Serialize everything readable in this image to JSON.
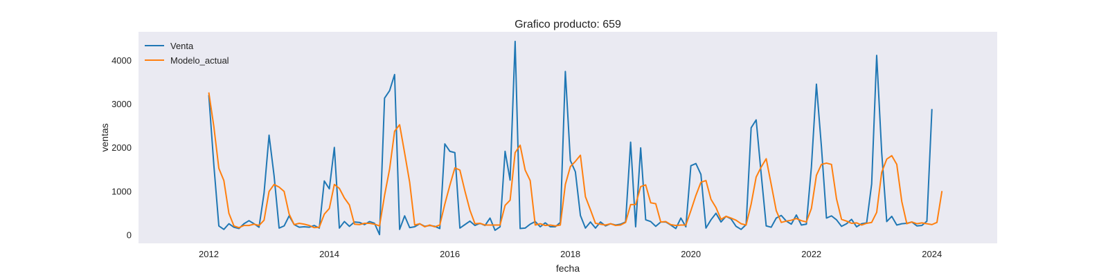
{
  "chart_data": {
    "type": "line",
    "title": "Grafico producto: 659",
    "xlabel": "fecha",
    "ylabel": "ventas",
    "x_start": "2012-01",
    "x_ticks": [
      "2012",
      "2014",
      "2016",
      "2018",
      "2020",
      "2022",
      "2024"
    ],
    "y_ticks": [
      0,
      1000,
      2000,
      3000,
      4000
    ],
    "xlim": [
      "2010-11",
      "2025-02"
    ],
    "ylim": [
      -200,
      4650
    ],
    "grid": false,
    "legend_position": "top-left",
    "background_color": "#eaeaf2",
    "series": [
      {
        "name": "Venta",
        "color": "#1f77b4",
        "values": [
          3200,
          1600,
          200,
          120,
          250,
          170,
          140,
          250,
          320,
          250,
          170,
          950,
          2280,
          1350,
          150,
          200,
          430,
          230,
          170,
          180,
          170,
          210,
          150,
          1230,
          1050,
          2000,
          150,
          300,
          190,
          290,
          280,
          230,
          300,
          260,
          0,
          3130,
          3300,
          3670,
          120,
          430,
          160,
          180,
          250,
          190,
          210,
          190,
          140,
          2080,
          1910,
          1880,
          150,
          230,
          310,
          210,
          260,
          210,
          380,
          100,
          180,
          1910,
          1250,
          4430,
          140,
          150,
          240,
          300,
          180,
          270,
          180,
          180,
          280,
          3740,
          1700,
          1440,
          440,
          150,
          290,
          150,
          290,
          200,
          250,
          220,
          240,
          290,
          2120,
          180,
          1990,
          340,
          300,
          190,
          290,
          290,
          220,
          140,
          380,
          180,
          1580,
          1630,
          1380,
          150,
          340,
          490,
          290,
          420,
          360,
          190,
          120,
          230,
          2450,
          2630,
          1390,
          200,
          170,
          380,
          440,
          310,
          240,
          450,
          220,
          240,
          1550,
          3450,
          2010,
          380,
          430,
          340,
          190,
          250,
          350,
          180,
          250,
          270,
          1160,
          4110,
          1880,
          300,
          420,
          220,
          250,
          260,
          290,
          200,
          210,
          310,
          2880
        ]
      },
      {
        "name": "Modelo_actual",
        "color": "#ff7f0e",
        "values": [
          3260,
          2480,
          1520,
          1240,
          490,
          200,
          160,
          210,
          210,
          240,
          210,
          330,
          990,
          1150,
          1090,
          990,
          470,
          230,
          260,
          240,
          210,
          160,
          170,
          470,
          600,
          1150,
          1060,
          840,
          680,
          240,
          230,
          260,
          260,
          240,
          200,
          900,
          1500,
          2370,
          2520,
          1870,
          1200,
          220,
          250,
          180,
          220,
          180,
          220,
          700,
          1130,
          1530,
          1480,
          1000,
          560,
          250,
          260,
          220,
          220,
          220,
          220,
          670,
          790,
          1880,
          2050,
          1480,
          1240,
          220,
          250,
          210,
          220,
          200,
          220,
          1150,
          1560,
          1680,
          1820,
          870,
          570,
          260,
          240,
          220,
          250,
          210,
          220,
          280,
          690,
          690,
          1100,
          1140,
          730,
          710,
          290,
          300,
          230,
          210,
          220,
          220,
          550,
          900,
          1200,
          1240,
          810,
          620,
          350,
          420,
          380,
          330,
          250,
          220,
          700,
          1320,
          1550,
          1740,
          1150,
          550,
          280,
          310,
          330,
          370,
          320,
          290,
          600,
          1360,
          1610,
          1640,
          1610,
          820,
          350,
          310,
          260,
          270,
          220,
          260,
          280,
          510,
          1430,
          1730,
          1810,
          1610,
          760,
          250,
          290,
          250,
          270,
          250,
          230,
          280,
          1000
        ]
      }
    ]
  }
}
